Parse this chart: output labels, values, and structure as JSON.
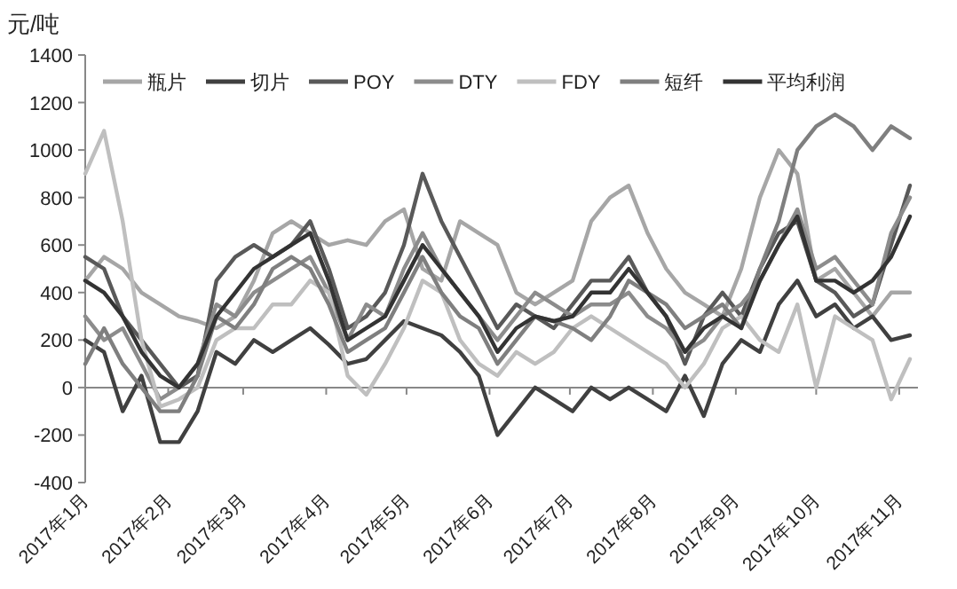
{
  "chart_data": {
    "type": "line",
    "ylabel": "元/吨",
    "x": [
      "2017-01-01",
      "2017-01-08",
      "2017-01-15",
      "2017-01-22",
      "2017-01-29",
      "2017-02-05",
      "2017-02-12",
      "2017-02-19",
      "2017-02-26",
      "2017-03-05",
      "2017-03-12",
      "2017-03-19",
      "2017-03-26",
      "2017-04-02",
      "2017-04-09",
      "2017-04-16",
      "2017-04-23",
      "2017-04-30",
      "2017-05-07",
      "2017-05-14",
      "2017-05-21",
      "2017-05-28",
      "2017-06-04",
      "2017-06-11",
      "2017-06-18",
      "2017-06-25",
      "2017-07-02",
      "2017-07-09",
      "2017-07-16",
      "2017-07-23",
      "2017-07-30",
      "2017-08-06",
      "2017-08-13",
      "2017-08-20",
      "2017-08-27",
      "2017-09-03",
      "2017-09-10",
      "2017-09-17",
      "2017-09-24",
      "2017-10-01",
      "2017-10-08",
      "2017-10-15",
      "2017-10-22",
      "2017-10-29",
      "2017-11-05"
    ],
    "series": [
      {
        "name": "瓶片",
        "color": "#a6a6a6",
        "values": [
          450,
          550,
          500,
          400,
          350,
          300,
          280,
          250,
          300,
          450,
          650,
          700,
          650,
          600,
          620,
          600,
          700,
          750,
          500,
          450,
          700,
          650,
          600,
          400,
          350,
          400,
          450,
          700,
          800,
          850,
          650,
          500,
          400,
          350,
          300,
          500,
          800,
          1000,
          900,
          450,
          500,
          400,
          300,
          400,
          400
        ]
      },
      {
        "name": "切片",
        "color": "#404040",
        "values": [
          200,
          150,
          -100,
          50,
          -230,
          -230,
          -100,
          150,
          100,
          200,
          150,
          200,
          250,
          180,
          100,
          120,
          200,
          280,
          250,
          220,
          150,
          50,
          -200,
          -100,
          0,
          -50,
          -100,
          0,
          -50,
          0,
          -50,
          -100,
          50,
          -120,
          100,
          200,
          150,
          350,
          450,
          300,
          350,
          250,
          300,
          200,
          220
        ]
      },
      {
        "name": "POY",
        "color": "#595959",
        "values": [
          550,
          500,
          300,
          200,
          100,
          0,
          50,
          450,
          550,
          600,
          550,
          600,
          700,
          500,
          250,
          300,
          400,
          600,
          900,
          700,
          550,
          400,
          250,
          350,
          300,
          250,
          350,
          450,
          450,
          550,
          400,
          300,
          100,
          300,
          400,
          300,
          500,
          650,
          700,
          450,
          400,
          300,
          350,
          600,
          850
        ]
      },
      {
        "name": "DTY",
        "color": "#8c8c8c",
        "values": [
          300,
          200,
          250,
          100,
          -50,
          0,
          100,
          350,
          300,
          400,
          450,
          500,
          550,
          400,
          200,
          350,
          300,
          500,
          650,
          500,
          400,
          300,
          200,
          300,
          400,
          350,
          300,
          350,
          350,
          400,
          300,
          250,
          150,
          200,
          300,
          350,
          450,
          600,
          750,
          500,
          550,
          450,
          350,
          650,
          800
        ]
      },
      {
        "name": "FDY",
        "color": "#bfbfbf",
        "values": [
          900,
          1080,
          700,
          200,
          -80,
          -50,
          0,
          200,
          250,
          250,
          350,
          350,
          450,
          400,
          50,
          -30,
          100,
          250,
          450,
          400,
          200,
          100,
          50,
          150,
          100,
          150,
          250,
          300,
          250,
          200,
          150,
          100,
          0,
          100,
          250,
          300,
          200,
          150,
          350,
          0,
          300,
          250,
          200,
          -50,
          120
        ]
      },
      {
        "name": "短纤",
        "color": "#7f7f7f",
        "values": [
          100,
          250,
          100,
          0,
          -100,
          -100,
          50,
          300,
          250,
          350,
          500,
          550,
          500,
          350,
          150,
          200,
          250,
          400,
          550,
          400,
          300,
          250,
          100,
          200,
          300,
          280,
          250,
          200,
          300,
          450,
          400,
          350,
          250,
          300,
          350,
          250,
          500,
          700,
          1000,
          1100,
          1150,
          1100,
          1000,
          1100,
          1050
        ]
      },
      {
        "name": "平均利润",
        "color": "#333333",
        "values": [
          450,
          400,
          300,
          150,
          50,
          0,
          100,
          300,
          400,
          500,
          550,
          600,
          650,
          450,
          200,
          250,
          300,
          450,
          600,
          500,
          400,
          300,
          150,
          250,
          300,
          280,
          300,
          400,
          400,
          500,
          400,
          300,
          150,
          250,
          300,
          250,
          450,
          600,
          720,
          450,
          450,
          400,
          450,
          550,
          720
        ]
      }
    ],
    "xlim": [
      "2017-01-01",
      "2017-11-08"
    ],
    "xticks": [
      {
        "value": "2017-01-01",
        "label": "2017年1月"
      },
      {
        "value": "2017-02-01",
        "label": "2017年2月"
      },
      {
        "value": "2017-03-01",
        "label": "2017年3月"
      },
      {
        "value": "2017-04-01",
        "label": "2017年4月"
      },
      {
        "value": "2017-05-01",
        "label": "2017年5月"
      },
      {
        "value": "2017-06-01",
        "label": "2017年6月"
      },
      {
        "value": "2017-07-01",
        "label": "2017年7月"
      },
      {
        "value": "2017-08-01",
        "label": "2017年8月"
      },
      {
        "value": "2017-09-01",
        "label": "2017年9月"
      },
      {
        "value": "2017-10-01",
        "label": "2017年10月"
      },
      {
        "value": "2017-11-01",
        "label": "2017年11月"
      }
    ],
    "ylim": [
      -400,
      1400
    ],
    "yticks": [
      -400,
      -200,
      0,
      200,
      400,
      600,
      800,
      1000,
      1200,
      1400
    ],
    "legend": "top"
  }
}
